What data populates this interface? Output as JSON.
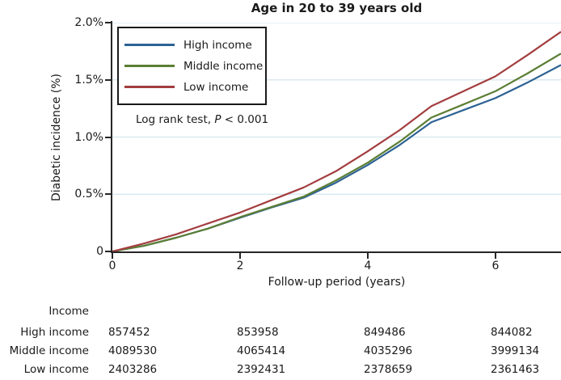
{
  "chart_data": {
    "type": "line",
    "title": "Age in 20 to 39 years old",
    "xlabel": "Follow-up period (years)",
    "ylabel": "Diabetic incidence (%)",
    "xlim": [
      0,
      7.03
    ],
    "ylim": [
      0,
      2.0
    ],
    "grid": "horizontal light-blue lines at each y tick",
    "legend_position": "upper-left inside plot, boxed",
    "xticks": [
      {
        "value": 0,
        "label": "0"
      },
      {
        "value": 2,
        "label": "2"
      },
      {
        "value": 4,
        "label": "4"
      },
      {
        "value": 6,
        "label": "6"
      }
    ],
    "yticks": [
      {
        "value": 0,
        "label": "0"
      },
      {
        "value": 0.5,
        "label": "0.5%"
      },
      {
        "value": 1.0,
        "label": "1.0%"
      },
      {
        "value": 1.5,
        "label": "1.5%"
      },
      {
        "value": 2.0,
        "label": "2.0%"
      }
    ],
    "x": [
      0,
      0.5,
      1,
      1.5,
      2,
      2.5,
      3,
      3.5,
      4,
      4.5,
      5,
      5.5,
      6,
      6.5,
      7.03
    ],
    "series": [
      {
        "name": "High income",
        "color": "#2d6294",
        "values": [
          0,
          0.05,
          0.12,
          0.2,
          0.295,
          0.385,
          0.47,
          0.6,
          0.755,
          0.93,
          1.13,
          1.235,
          1.34,
          1.475,
          1.63
        ]
      },
      {
        "name": "Middle income",
        "color": "#5b7e34",
        "values": [
          0,
          0.05,
          0.12,
          0.2,
          0.3,
          0.39,
          0.48,
          0.62,
          0.775,
          0.96,
          1.17,
          1.285,
          1.4,
          1.555,
          1.73
        ]
      },
      {
        "name": "Low income",
        "color": "#a33d3f",
        "values": [
          0,
          0.07,
          0.15,
          0.245,
          0.34,
          0.45,
          0.56,
          0.7,
          0.875,
          1.06,
          1.27,
          1.4,
          1.53,
          1.715,
          1.92
        ]
      }
    ],
    "annotation": {
      "text_before": "Log rank test, ",
      "stat": "P",
      "text_after": " < 0.001"
    }
  },
  "risk_table": {
    "header": "Income",
    "rows": [
      {
        "label": "High income",
        "values": [
          "857452",
          "853958",
          "849486",
          "844082"
        ]
      },
      {
        "label": "Middle income",
        "values": [
          "4089530",
          "4065414",
          "4035296",
          "3999134"
        ]
      },
      {
        "label": "Low income",
        "values": [
          "2403286",
          "2392431",
          "2378659",
          "2361463"
        ]
      }
    ]
  },
  "colors": {
    "high_income": "#2d6294",
    "middle_income": "#5b7e34",
    "low_income": "#a33d3f",
    "gridline": "#dbe9f1",
    "axis": "#262626",
    "text": "#1a1a1a"
  }
}
